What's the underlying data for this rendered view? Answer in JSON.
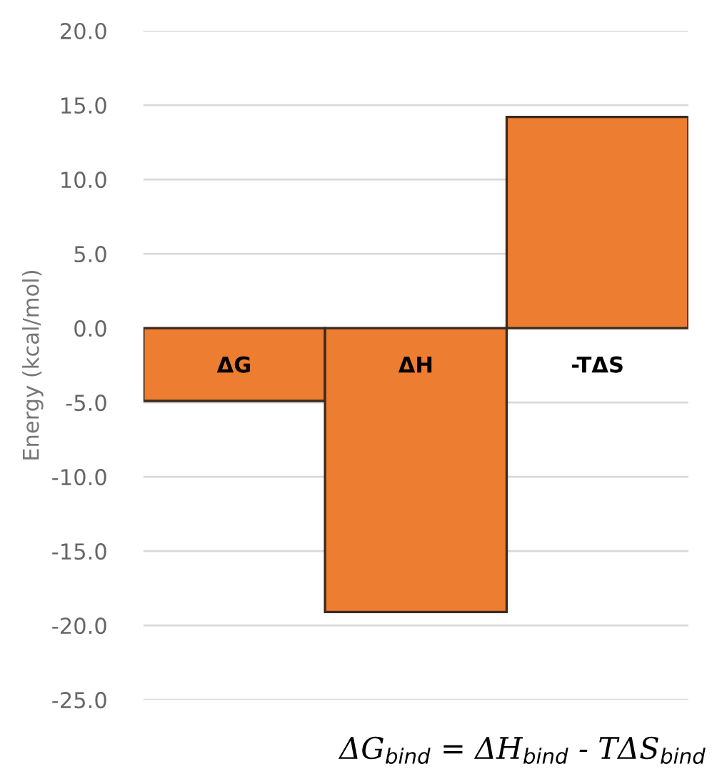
{
  "chart_data": {
    "type": "bar",
    "ylabel": "Energy (kcal/mol)",
    "categories": [
      "ΔG",
      "ΔH",
      "-TΔS"
    ],
    "values": [
      -4.9,
      -19.1,
      14.2
    ],
    "color": "#ed7d31",
    "ylim": [
      -25,
      20
    ],
    "yticks": [
      {
        "value": -25,
        "label": "-25.0"
      },
      {
        "value": -20,
        "label": "-20.0"
      },
      {
        "value": -15,
        "label": "-15.0"
      },
      {
        "value": -10,
        "label": "-10.0"
      },
      {
        "value": -5,
        "label": "-5.0"
      },
      {
        "value": 0,
        "label": "0.0"
      },
      {
        "value": 5,
        "label": "5.0"
      },
      {
        "value": 10,
        "label": "10.0"
      },
      {
        "value": 15,
        "label": "15.0"
      },
      {
        "value": 20,
        "label": "20.0"
      }
    ],
    "grid": "y",
    "annotations": [
      "ΔG$_{bind}$ = ΔH$_{bind}$ - TΔS$_{bind}$"
    ]
  }
}
